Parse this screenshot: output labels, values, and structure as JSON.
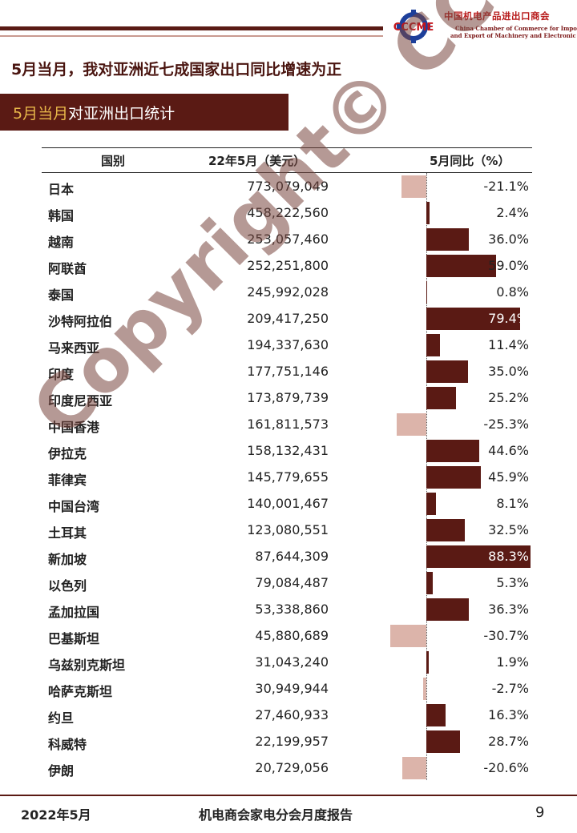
{
  "header": {
    "logo_abbr": "CCCME",
    "logo_cn": "中国机电产品进出口商会",
    "logo_en_line1": "China Chamber of Commerce for Import",
    "logo_en_line2": "and Export of Machinery and Electronic Products"
  },
  "page_title": "5月当月，我对亚洲近七成国家出口同比增速为正",
  "section": {
    "title_highlight": "5月当月",
    "title_rest": "对亚洲出口统计"
  },
  "table": {
    "columns": [
      "国别",
      "22年5月（美元）",
      "5月同比（%）"
    ],
    "rows": [
      {
        "country": "日本",
        "value": "773,079,049",
        "yoy": -21.1,
        "yoy_label": "-21.1%"
      },
      {
        "country": "韩国",
        "value": "458,222,560",
        "yoy": 2.4,
        "yoy_label": "2.4%"
      },
      {
        "country": "越南",
        "value": "253,057,460",
        "yoy": 36.0,
        "yoy_label": "36.0%"
      },
      {
        "country": "阿联酋",
        "value": "252,251,800",
        "yoy": 59.0,
        "yoy_label": "59.0%"
      },
      {
        "country": "泰国",
        "value": "245,992,028",
        "yoy": 0.8,
        "yoy_label": "0.8%"
      },
      {
        "country": "沙特阿拉伯",
        "value": "209,417,250",
        "yoy": 79.4,
        "yoy_label": "79.4%"
      },
      {
        "country": "马来西亚",
        "value": "194,337,630",
        "yoy": 11.4,
        "yoy_label": "11.4%"
      },
      {
        "country": "印度",
        "value": "177,751,146",
        "yoy": 35.0,
        "yoy_label": "35.0%"
      },
      {
        "country": "印度尼西亚",
        "value": "173,879,739",
        "yoy": 25.2,
        "yoy_label": "25.2%"
      },
      {
        "country": "中国香港",
        "value": "161,811,573",
        "yoy": -25.3,
        "yoy_label": "-25.3%"
      },
      {
        "country": "伊拉克",
        "value": "158,132,431",
        "yoy": 44.6,
        "yoy_label": "44.6%"
      },
      {
        "country": "菲律宾",
        "value": "145,779,655",
        "yoy": 45.9,
        "yoy_label": "45.9%"
      },
      {
        "country": "中国台湾",
        "value": "140,001,467",
        "yoy": 8.1,
        "yoy_label": "8.1%"
      },
      {
        "country": "土耳其",
        "value": "123,080,551",
        "yoy": 32.5,
        "yoy_label": "32.5%"
      },
      {
        "country": "新加坡",
        "value": "87,644,309",
        "yoy": 88.3,
        "yoy_label": "88.3%"
      },
      {
        "country": "以色列",
        "value": "79,084,487",
        "yoy": 5.3,
        "yoy_label": "5.3%"
      },
      {
        "country": "孟加拉国",
        "value": "53,338,860",
        "yoy": 36.3,
        "yoy_label": "36.3%"
      },
      {
        "country": "巴基斯坦",
        "value": "45,880,689",
        "yoy": -30.7,
        "yoy_label": "-30.7%"
      },
      {
        "country": "乌兹别克斯坦",
        "value": "31,043,240",
        "yoy": 1.9,
        "yoy_label": "1.9%"
      },
      {
        "country": "哈萨克斯坦",
        "value": "30,949,944",
        "yoy": -2.7,
        "yoy_label": "-2.7%"
      },
      {
        "country": "约旦",
        "value": "27,460,933",
        "yoy": 16.3,
        "yoy_label": "16.3%"
      },
      {
        "country": "科威特",
        "value": "22,199,957",
        "yoy": 28.7,
        "yoy_label": "28.7%"
      },
      {
        "country": "伊朗",
        "value": "20,729,056",
        "yoy": -20.6,
        "yoy_label": "-20.6%"
      }
    ]
  },
  "watermark": "Copyright© CCCME",
  "footer": {
    "date": "2022年5月",
    "report_name": "机电商会家电分会月度报告",
    "page_number": "9"
  },
  "colors": {
    "brand_dark": "#5a1a14",
    "negative_bar": "#dcb4aa",
    "logo_red": "#b81d1d"
  }
}
